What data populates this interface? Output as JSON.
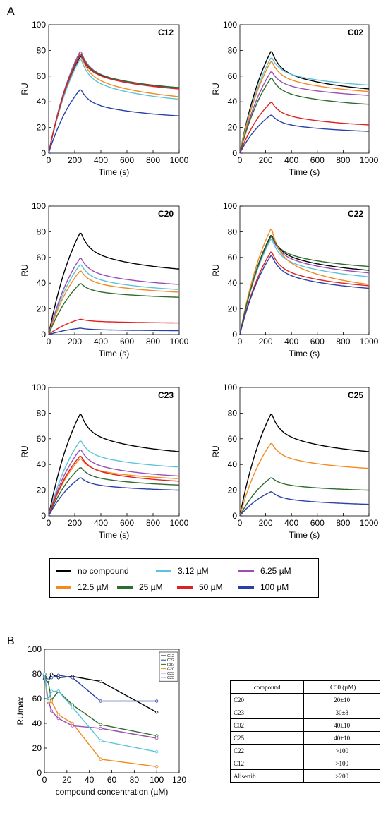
{
  "panel_a_label": "A",
  "panel_b_label": "B",
  "series_colors": {
    "no compound": "#000000",
    "3.12 µM": "#5bc3dc",
    "6.25 µM": "#9b4db3",
    "12.5 µM": "#f28a1e",
    "25 µM": "#2e6b2e",
    "50 µM": "#e02020",
    "100 µM": "#2840a8"
  },
  "legend": [
    {
      "label": "no compound",
      "color": "#000000"
    },
    {
      "label": "3.12 µM",
      "color": "#5bc3dc"
    },
    {
      "label": "6.25 µM",
      "color": "#9b4db3"
    },
    {
      "label": "12.5 µM",
      "color": "#f28a1e"
    },
    {
      "label": "25 µM",
      "color": "#2e6b2e"
    },
    {
      "label": "50 µM",
      "color": "#e02020"
    },
    {
      "label": "100 µM",
      "color": "#2840a8"
    }
  ],
  "chart_data": [
    {
      "type": "line",
      "title": "C12",
      "xlabel": "Time (s)",
      "ylabel": "RU",
      "xlim": [
        0,
        1000
      ],
      "ylim": [
        0,
        100
      ],
      "xticks": [
        0,
        200,
        400,
        600,
        800,
        1000
      ],
      "yticks": [
        0,
        20,
        40,
        60,
        80,
        100
      ],
      "series": [
        {
          "name": "no compound",
          "peak": 76,
          "end": 51
        },
        {
          "name": "3.12 µM",
          "peak": 74,
          "end": 42
        },
        {
          "name": "6.25 µM",
          "peak": 80,
          "end": 50
        },
        {
          "name": "12.5 µM",
          "peak": 77,
          "end": 44
        },
        {
          "name": "25 µM",
          "peak": 78,
          "end": 51
        },
        {
          "name": "50 µM",
          "peak": 77,
          "end": 50
        },
        {
          "name": "100 µM",
          "peak": 50,
          "end": 29
        }
      ]
    },
    {
      "type": "line",
      "title": "C02",
      "xlabel": "Time (s)",
      "ylabel": "RU",
      "xlim": [
        0,
        1000
      ],
      "ylim": [
        0,
        100
      ],
      "xticks": [
        0,
        200,
        400,
        600,
        800,
        1000
      ],
      "yticks": [
        0,
        20,
        40,
        60,
        80,
        100
      ],
      "series": [
        {
          "name": "no compound",
          "peak": 80,
          "end": 50
        },
        {
          "name": "3.12 µM",
          "peak": 75,
          "end": 53
        },
        {
          "name": "6.25 µM",
          "peak": 64,
          "end": 45
        },
        {
          "name": "12.5 µM",
          "peak": 72,
          "end": 48
        },
        {
          "name": "25 µM",
          "peak": 59,
          "end": 38
        },
        {
          "name": "50 µM",
          "peak": 40,
          "end": 22
        },
        {
          "name": "100 µM",
          "peak": 30,
          "end": 17
        }
      ]
    },
    {
      "type": "line",
      "title": "C20",
      "xlabel": "Time (s)",
      "ylabel": "RU",
      "xlim": [
        0,
        1000
      ],
      "ylim": [
        0,
        100
      ],
      "xticks": [
        0,
        200,
        400,
        600,
        800,
        1000
      ],
      "yticks": [
        0,
        20,
        40,
        60,
        80,
        100
      ],
      "series": [
        {
          "name": "no compound",
          "peak": 80,
          "end": 51
        },
        {
          "name": "3.12 µM",
          "peak": 55,
          "end": 35
        },
        {
          "name": "6.25 µM",
          "peak": 60,
          "end": 39
        },
        {
          "name": "12.5 µM",
          "peak": 50,
          "end": 33
        },
        {
          "name": "25 µM",
          "peak": 40,
          "end": 29
        },
        {
          "name": "50 µM",
          "peak": 12,
          "end": 9
        },
        {
          "name": "100 µM",
          "peak": 5,
          "end": 3
        }
      ]
    },
    {
      "type": "line",
      "title": "C22",
      "xlabel": "Time (s)",
      "ylabel": "RU",
      "xlim": [
        0,
        1000
      ],
      "ylim": [
        0,
        100
      ],
      "xticks": [
        0,
        200,
        400,
        600,
        800,
        1000
      ],
      "yticks": [
        0,
        20,
        40,
        60,
        80,
        100
      ],
      "series": [
        {
          "name": "no compound",
          "peak": 78,
          "end": 50
        },
        {
          "name": "3.12 µM",
          "peak": 75,
          "end": 45
        },
        {
          "name": "6.25 µM",
          "peak": 77,
          "end": 48
        },
        {
          "name": "12.5 µM",
          "peak": 83,
          "end": 39
        },
        {
          "name": "25 µM",
          "peak": 77,
          "end": 53
        },
        {
          "name": "50 µM",
          "peak": 65,
          "end": 38
        },
        {
          "name": "100 µM",
          "peak": 62,
          "end": 36
        }
      ]
    },
    {
      "type": "line",
      "title": "C23",
      "xlabel": "Time (s)",
      "ylabel": "RU",
      "xlim": [
        0,
        1000
      ],
      "ylim": [
        0,
        100
      ],
      "xticks": [
        0,
        200,
        400,
        600,
        800,
        1000
      ],
      "yticks": [
        0,
        20,
        40,
        60,
        80,
        100
      ],
      "series": [
        {
          "name": "no compound",
          "peak": 80,
          "end": 50
        },
        {
          "name": "3.12 µM",
          "peak": 59,
          "end": 38
        },
        {
          "name": "6.25 µM",
          "peak": 52,
          "end": 31
        },
        {
          "name": "12.5 µM",
          "peak": 45,
          "end": 29
        },
        {
          "name": "25 µM",
          "peak": 38,
          "end": 24
        },
        {
          "name": "50 µM",
          "peak": 47,
          "end": 27
        },
        {
          "name": "100 µM",
          "peak": 30,
          "end": 20
        }
      ]
    },
    {
      "type": "line",
      "title": "C25",
      "xlabel": "Time (s)",
      "ylabel": "RU",
      "xlim": [
        0,
        1000
      ],
      "ylim": [
        0,
        100
      ],
      "xticks": [
        0,
        200,
        400,
        600,
        800,
        1000
      ],
      "yticks": [
        0,
        20,
        40,
        60,
        80,
        100
      ],
      "series": [
        {
          "name": "no compound",
          "peak": 80,
          "end": 50
        },
        {
          "name": "12.5 µM",
          "peak": 57,
          "end": 37
        },
        {
          "name": "25 µM",
          "peak": 30,
          "end": 20
        },
        {
          "name": "100 µM",
          "peak": 19,
          "end": 9
        }
      ]
    },
    {
      "type": "line",
      "title": "",
      "xlabel": "compound concentration (µM)",
      "ylabel": "RUmax",
      "xlim": [
        0,
        120
      ],
      "ylim": [
        0,
        100
      ],
      "xticks": [
        0,
        20,
        40,
        60,
        80,
        100,
        120
      ],
      "yticks": [
        0,
        20,
        40,
        60,
        80,
        100
      ],
      "x": [
        0,
        3.12,
        6.25,
        12.5,
        25,
        50,
        100
      ],
      "series": [
        {
          "name": "C12",
          "color": "#000000",
          "values": [
            76,
            74,
            80,
            77,
            78,
            74,
            49
          ]
        },
        {
          "name": "C22",
          "color": "#2840a8",
          "values": [
            78,
            75,
            77,
            79,
            77,
            58,
            58
          ]
        },
        {
          "name": "C02",
          "color": "#2e6b2e",
          "values": [
            80,
            75,
            59,
            66,
            55,
            39,
            30
          ]
        },
        {
          "name": "C20",
          "color": "#f28a1e",
          "values": [
            80,
            55,
            58,
            47,
            40,
            11,
            5
          ]
        },
        {
          "name": "C23",
          "color": "#9b4db3",
          "values": [
            80,
            60,
            50,
            44,
            38,
            36,
            28
          ]
        },
        {
          "name": "C25",
          "color": "#5bc3dc",
          "values": [
            80,
            58,
            66,
            66,
            53,
            26,
            17
          ]
        }
      ]
    }
  ],
  "ic50_table": {
    "headers": [
      "compound",
      "IC50 (µM)"
    ],
    "rows": [
      [
        "C20",
        "20±10"
      ],
      [
        "C23",
        "30±8"
      ],
      [
        "C02",
        "40±10"
      ],
      [
        "C25",
        "40±10"
      ],
      [
        "C22",
        ">100"
      ],
      [
        "C12",
        ">100"
      ],
      [
        "Alisertib",
        ">200"
      ]
    ]
  }
}
